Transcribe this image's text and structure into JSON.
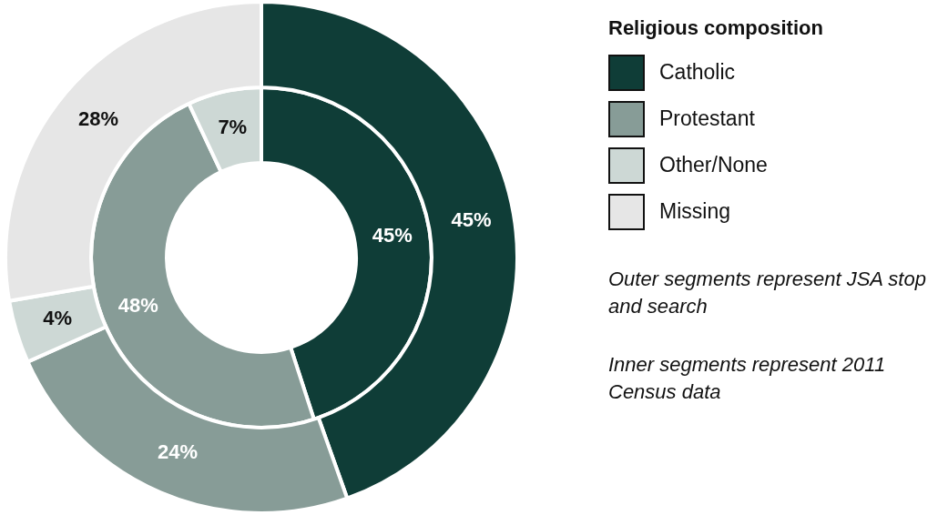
{
  "chart_data": {
    "type": "donut",
    "categories": [
      "Catholic",
      "Protestant",
      "Other/None",
      "Missing"
    ],
    "colors": [
      "#0f3d37",
      "#879c97",
      "#cdd8d5",
      "#e6e6e6"
    ],
    "series": [
      {
        "values": [
          45,
          24,
          4,
          28
        ],
        "value_labels": [
          "45%",
          "24%",
          "4%",
          "28%"
        ]
      },
      {
        "values": [
          45,
          48,
          7,
          null
        ],
        "value_labels": [
          "45%",
          "48%",
          "7%",
          null
        ]
      }
    ],
    "legend": "right",
    "legend_title": "Religious composition",
    "annotations": [
      "Outer segments represent JSA stop and search",
      "Inner segments represent 2011 Census data"
    ]
  }
}
